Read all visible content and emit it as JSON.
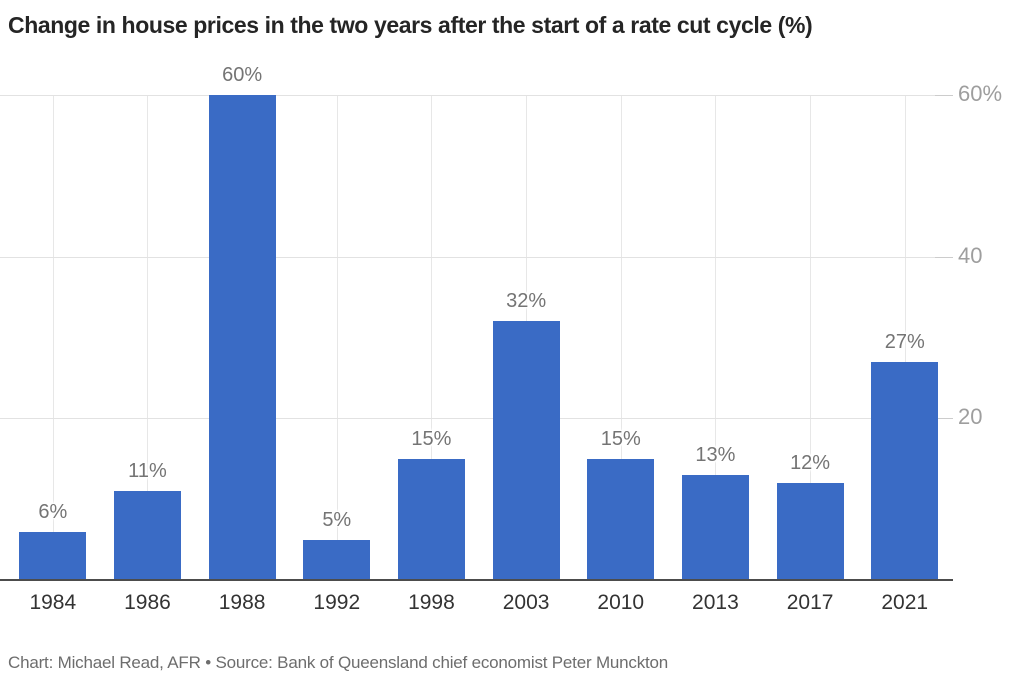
{
  "header": {
    "title": "Change in house prices in the two years after the start of a rate cut cycle (%)"
  },
  "footer": {
    "attribution": "Chart: Michael Read, AFR • Source: Bank of Queensland chief economist Peter Munckton"
  },
  "chart_data": {
    "type": "bar",
    "title": "Change in house prices in the two years after the start of a rate cut cycle (%)",
    "categories": [
      "1984",
      "1986",
      "1988",
      "1992",
      "1998",
      "2003",
      "2010",
      "2013",
      "2017",
      "2021"
    ],
    "values": [
      6,
      11,
      60,
      5,
      15,
      32,
      15,
      13,
      12,
      27
    ],
    "value_labels": [
      "6%",
      "11%",
      "60%",
      "5%",
      "15%",
      "32%",
      "15%",
      "13%",
      "12%",
      "27%"
    ],
    "xlabel": "",
    "ylabel": "",
    "ylim": [
      0,
      60
    ],
    "yticks": [
      {
        "value": 20,
        "label": "20"
      },
      {
        "value": 40,
        "label": "40"
      },
      {
        "value": 60,
        "label": "60%"
      }
    ],
    "grid": true,
    "legend": "none",
    "bar_color": "#3a6bc5",
    "source_note": "Chart: Michael Read, AFR • Source: Bank of Queensland chief economist Peter Munckton"
  },
  "colors": {
    "bar": "#3a6bc5",
    "gridline": "#e2e2e2",
    "baseline": "#4c4c4c",
    "value_label": "#747474",
    "ytick_label": "#9e9e9e",
    "xtick_label": "#333333",
    "title": "#252525",
    "footer": "#6d6d6d"
  }
}
